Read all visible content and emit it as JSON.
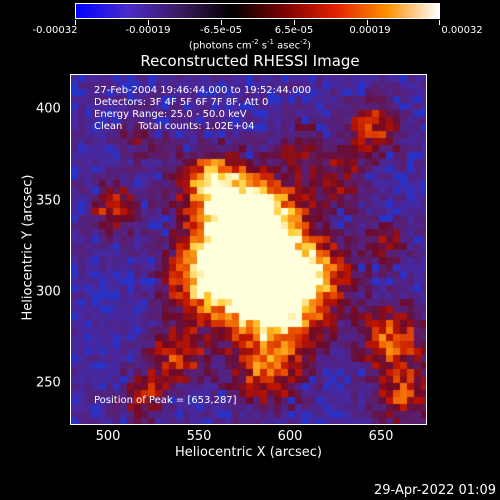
{
  "colorbar": {
    "ticks": [
      "-0.00032",
      "-0.00019",
      "-6.5e-05",
      "6.5e-05",
      "0.00019",
      "0.00032"
    ],
    "units_prefix": "(photons cm",
    "units_exp1": "-2",
    "units_mid": " s",
    "units_exp2": "-1",
    "units_mid2": " asec",
    "units_exp3": "-2",
    "units_suffix": ")",
    "colors": [
      "#0000ff",
      "#4a2cc8",
      "#3b1a60",
      "#000000",
      "#7a0000",
      "#e02000",
      "#ff9000",
      "#ffffff"
    ]
  },
  "title": "Reconstructed RHESSI Image",
  "info": {
    "line1": "27-Feb-2004 19:46:44.000 to 19:52:44.000",
    "line2": "Detectors: 3F 4F 5F 6F 7F 8F, Att 0",
    "line3": "Energy Range: 25.0 - 50.0 keV",
    "line4": "Clean     Total counts: 1.02E+04",
    "peak": "Position of Peak = [653,287]"
  },
  "axes": {
    "xlabel": "Heliocentric X (arcsec)",
    "ylabel": "Heliocentric Y (arcsec)",
    "xticks": [
      "500",
      "550",
      "600",
      "650"
    ],
    "yticks": [
      "400",
      "350",
      "300",
      "250"
    ]
  },
  "footer_date": "29-Apr-2022 01:09"
}
